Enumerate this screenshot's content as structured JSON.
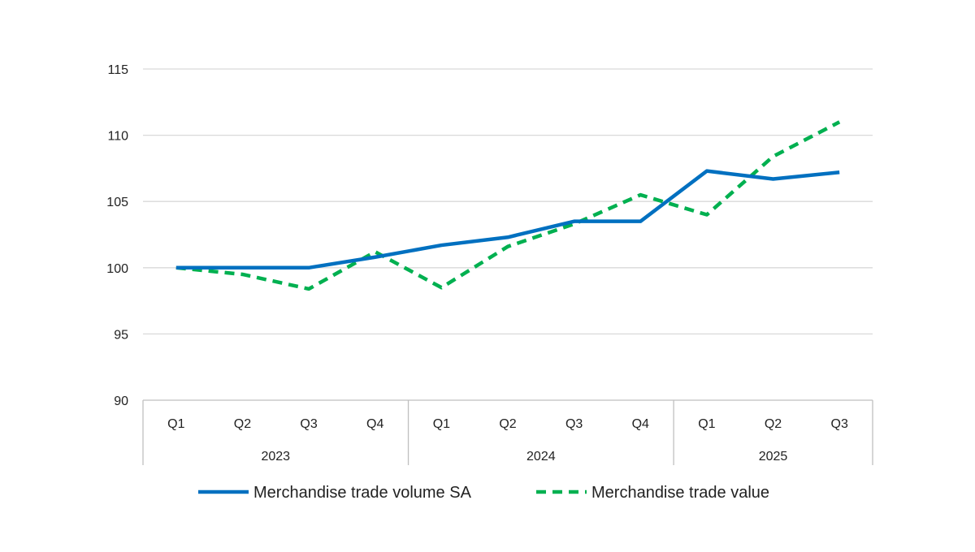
{
  "chart_data": {
    "type": "line",
    "title": "",
    "xlabel": "",
    "ylabel": "",
    "ylim": [
      90,
      115
    ],
    "yticks": [
      "90",
      "95",
      "100",
      "105",
      "110",
      "115"
    ],
    "grid": true,
    "categories": [
      "Q1",
      "Q2",
      "Q3",
      "Q4",
      "Q1",
      "Q2",
      "Q3",
      "Q4",
      "Q1",
      "Q2",
      "Q3"
    ],
    "groups": [
      {
        "label": "2023",
        "count": 4
      },
      {
        "label": "2024",
        "count": 4
      },
      {
        "label": "2025",
        "count": 3
      }
    ],
    "series": [
      {
        "name": "Merchandise trade volume SA",
        "color": "#0070C0",
        "style": "solid",
        "values": [
          100.0,
          100.0,
          100.0,
          100.8,
          101.7,
          102.3,
          103.5,
          103.5,
          107.3,
          106.7,
          107.2
        ]
      },
      {
        "name": "Merchandise trade value",
        "color": "#00B050",
        "style": "dashed",
        "values": [
          100.0,
          99.5,
          98.4,
          101.2,
          98.5,
          101.6,
          103.3,
          105.5,
          104.0,
          108.4,
          111.0
        ]
      }
    ],
    "legend_position": "bottom"
  }
}
